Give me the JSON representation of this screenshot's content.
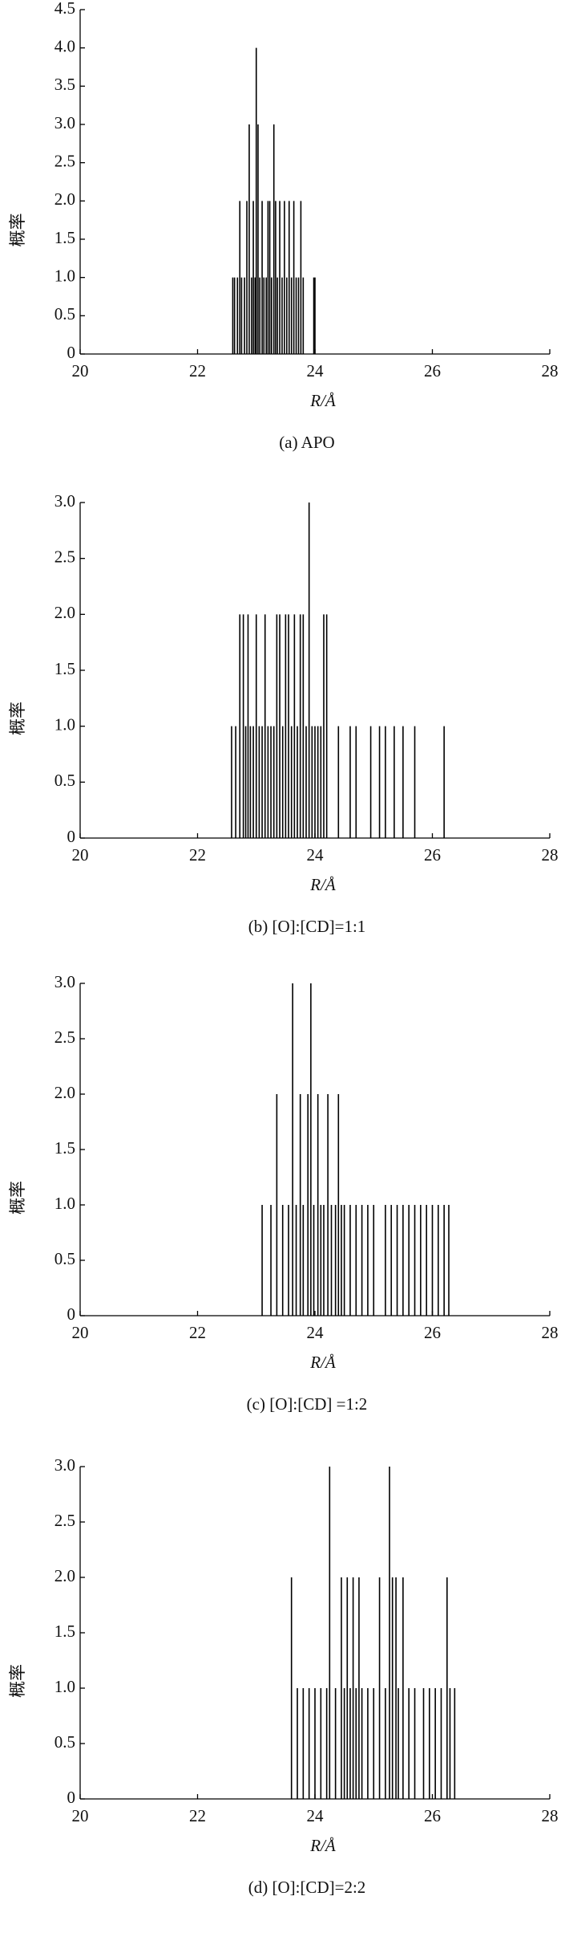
{
  "chart_data": [
    {
      "type": "stem",
      "caption": "(a) APO",
      "xlabel": "R/Å",
      "ylabel": "概率",
      "xlim": [
        20,
        28
      ],
      "ylim": [
        0,
        4.5
      ],
      "xticks": [
        20,
        22,
        24,
        26,
        28
      ],
      "yticks": [
        0,
        0.5,
        {
          "value": 1,
          "label": "1.0"
        },
        1.5,
        {
          "value": 2,
          "label": "2.0"
        },
        2.5,
        {
          "value": 3,
          "label": "3.0"
        },
        3.5,
        {
          "value": 4,
          "label": "4.0"
        },
        4.5
      ],
      "color": "#000000",
      "x": [
        22.6,
        22.63,
        22.68,
        22.72,
        22.75,
        22.8,
        22.84,
        22.88,
        22.92,
        22.95,
        22.98,
        23.0,
        23.03,
        23.06,
        23.1,
        23.13,
        23.17,
        23.2,
        23.23,
        23.26,
        23.3,
        23.33,
        23.36,
        23.4,
        23.44,
        23.48,
        23.52,
        23.56,
        23.6,
        23.64,
        23.68,
        23.72,
        23.76,
        23.8,
        23.98,
        24.0
      ],
      "values": [
        1,
        1,
        1,
        2,
        1,
        1,
        2,
        3,
        1,
        2,
        1,
        4,
        3,
        1,
        2,
        1,
        1,
        2,
        2,
        1,
        3,
        2,
        1,
        2,
        1,
        2,
        1,
        2,
        1,
        2,
        1,
        1,
        2,
        1,
        1,
        1
      ]
    },
    {
      "type": "stem",
      "caption": "(b) [O]:[CD]=1:1",
      "xlabel": "R/Å",
      "ylabel": "概率",
      "xlim": [
        20,
        28
      ],
      "ylim": [
        0,
        3
      ],
      "xticks": [
        20,
        22,
        24,
        26,
        28
      ],
      "yticks": [
        0,
        0.5,
        {
          "value": 1,
          "label": "1.0"
        },
        1.5,
        {
          "value": 2,
          "label": "2.0"
        },
        2.5,
        {
          "value": 3,
          "label": "3.0"
        }
      ],
      "color": "#000000",
      "x": [
        22.58,
        22.65,
        22.72,
        22.78,
        22.82,
        22.86,
        22.9,
        22.95,
        23.0,
        23.05,
        23.1,
        23.15,
        23.2,
        23.25,
        23.3,
        23.35,
        23.4,
        23.45,
        23.5,
        23.55,
        23.6,
        23.65,
        23.7,
        23.75,
        23.8,
        23.85,
        23.9,
        23.95,
        24.0,
        24.05,
        24.1,
        24.15,
        24.2,
        24.4,
        24.6,
        24.7,
        24.95,
        25.1,
        25.2,
        25.35,
        25.5,
        25.7,
        26.2
      ],
      "values": [
        1,
        1,
        2,
        2,
        1,
        2,
        1,
        1,
        2,
        1,
        1,
        2,
        1,
        1,
        1,
        2,
        2,
        1,
        2,
        2,
        1,
        2,
        1,
        2,
        2,
        1,
        3,
        1,
        1,
        1,
        1,
        2,
        2,
        1,
        1,
        1,
        1,
        1,
        1,
        1,
        1,
        1,
        1
      ]
    },
    {
      "type": "stem",
      "caption": "(c) [O]:[CD] =1:2",
      "xlabel": "R/Å",
      "ylabel": "概率",
      "xlim": [
        20,
        28
      ],
      "ylim": [
        0,
        3
      ],
      "xticks": [
        20,
        22,
        24,
        26,
        28
      ],
      "yticks": [
        0,
        0.5,
        {
          "value": 1,
          "label": "1.0"
        },
        1.5,
        {
          "value": 2,
          "label": "2.0"
        },
        2.5,
        {
          "value": 3,
          "label": "3.0"
        }
      ],
      "color": "#000000",
      "x": [
        23.1,
        23.25,
        23.35,
        23.45,
        23.55,
        23.62,
        23.68,
        23.75,
        23.8,
        23.88,
        23.93,
        23.98,
        24.05,
        24.1,
        24.15,
        24.22,
        24.28,
        24.35,
        24.4,
        24.45,
        24.5,
        24.6,
        24.7,
        24.8,
        24.9,
        25.0,
        25.2,
        25.3,
        25.4,
        25.5,
        25.6,
        25.7,
        25.8,
        25.9,
        26.0,
        26.1,
        26.2,
        26.28
      ],
      "values": [
        1,
        1,
        2,
        1,
        1,
        3,
        1,
        2,
        1,
        2,
        3,
        1,
        2,
        1,
        1,
        2,
        1,
        1,
        2,
        1,
        1,
        1,
        1,
        1,
        1,
        1,
        1,
        1,
        1,
        1,
        1,
        1,
        1,
        1,
        1,
        1,
        1,
        1
      ]
    },
    {
      "type": "stem",
      "caption": "(d) [O]:[CD]=2:2",
      "xlabel": "R/Å",
      "ylabel": "概率",
      "xlim": [
        20,
        28
      ],
      "ylim": [
        0,
        3
      ],
      "xticks": [
        20,
        22,
        24,
        26,
        28
      ],
      "yticks": [
        0,
        0.5,
        {
          "value": 1,
          "label": "1.0"
        },
        1.5,
        {
          "value": 2,
          "label": "2.0"
        },
        2.5,
        {
          "value": 3,
          "label": "3.0"
        }
      ],
      "color": "#000000",
      "x": [
        23.6,
        23.7,
        23.8,
        23.9,
        24.0,
        24.1,
        24.2,
        24.25,
        24.35,
        24.45,
        24.5,
        24.55,
        24.6,
        24.65,
        24.7,
        24.75,
        24.8,
        24.9,
        25.0,
        25.1,
        25.2,
        25.27,
        25.32,
        25.38,
        25.42,
        25.5,
        25.6,
        25.7,
        25.85,
        25.95,
        26.05,
        26.15,
        26.25,
        26.3,
        26.38
      ],
      "values": [
        2,
        1,
        1,
        1,
        1,
        1,
        1,
        3,
        1,
        2,
        1,
        2,
        1,
        2,
        1,
        2,
        1,
        1,
        1,
        2,
        1,
        3,
        2,
        2,
        1,
        2,
        1,
        1,
        1,
        1,
        1,
        1,
        2,
        1,
        1
      ]
    }
  ]
}
